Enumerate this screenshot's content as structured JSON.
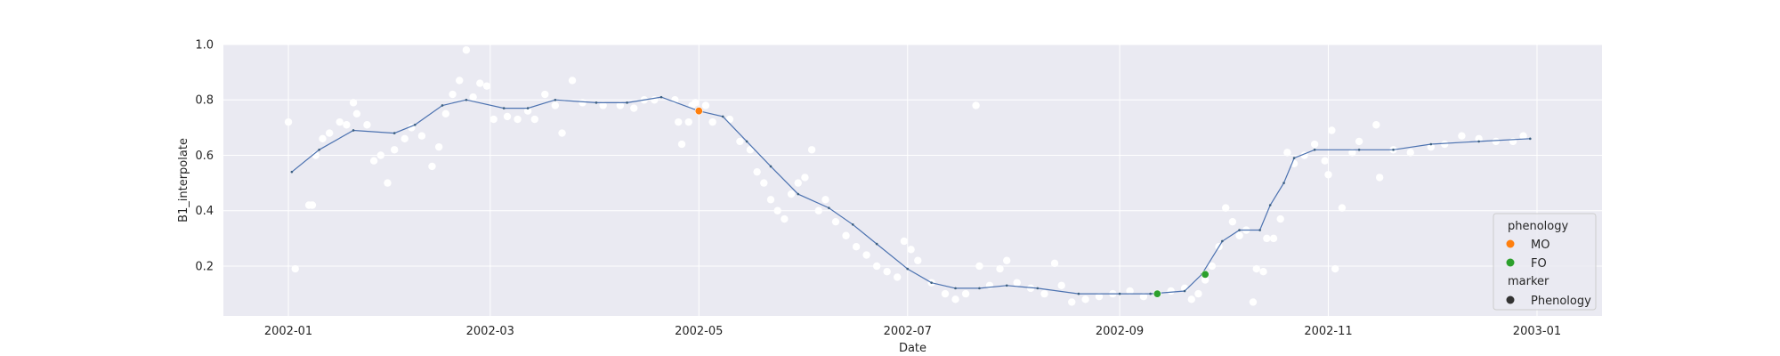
{
  "chart_data": {
    "type": "scatter",
    "xlabel": "Date",
    "ylabel": "B1_interpolate",
    "xlim": [
      "2001-12-13",
      "2003-01-20"
    ],
    "ylim": [
      0.02,
      1.0
    ],
    "x_ticks": [
      "2002-01",
      "2002-03",
      "2002-05",
      "2002-07",
      "2002-09",
      "2002-11",
      "2003-01"
    ],
    "y_ticks": [
      0.2,
      0.4,
      0.6,
      0.8,
      1.0
    ],
    "y_tick_labels": [
      "0.2",
      "0.4",
      "0.6",
      "0.8",
      "1.0"
    ],
    "grid": true,
    "colors": {
      "background": "#eaeaf2",
      "grid": "#ffffff",
      "interpolated": "#4c72b0",
      "raw_points": "#ffffff",
      "MO": "#ff7f0e",
      "FO": "#2ca02c",
      "marker": "#333333"
    },
    "interpolated_curve": [
      [
        "2002-01-02",
        0.54
      ],
      [
        "2002-01-10",
        0.62
      ],
      [
        "2002-01-20",
        0.69
      ],
      [
        "2002-02-01",
        0.68
      ],
      [
        "2002-02-07",
        0.71
      ],
      [
        "2002-02-15",
        0.78
      ],
      [
        "2002-02-22",
        0.8
      ],
      [
        "2002-03-05",
        0.77
      ],
      [
        "2002-03-12",
        0.77
      ],
      [
        "2002-03-20",
        0.8
      ],
      [
        "2002-04-01",
        0.79
      ],
      [
        "2002-04-10",
        0.79
      ],
      [
        "2002-04-20",
        0.81
      ],
      [
        "2002-05-01",
        0.76
      ],
      [
        "2002-05-08",
        0.74
      ],
      [
        "2002-05-15",
        0.65
      ],
      [
        "2002-05-22",
        0.56
      ],
      [
        "2002-05-30",
        0.46
      ],
      [
        "2002-06-08",
        0.41
      ],
      [
        "2002-06-15",
        0.35
      ],
      [
        "2002-06-22",
        0.28
      ],
      [
        "2002-07-01",
        0.19
      ],
      [
        "2002-07-08",
        0.14
      ],
      [
        "2002-07-15",
        0.12
      ],
      [
        "2002-07-22",
        0.12
      ],
      [
        "2002-07-30",
        0.13
      ],
      [
        "2002-08-08",
        0.12
      ],
      [
        "2002-08-20",
        0.1
      ],
      [
        "2002-09-01",
        0.1
      ],
      [
        "2002-09-10",
        0.1
      ],
      [
        "2002-09-20",
        0.11
      ],
      [
        "2002-09-25",
        0.17
      ],
      [
        "2002-10-01",
        0.29
      ],
      [
        "2002-10-06",
        0.33
      ],
      [
        "2002-10-12",
        0.33
      ],
      [
        "2002-10-15",
        0.42
      ],
      [
        "2002-10-19",
        0.5
      ],
      [
        "2002-10-22",
        0.59
      ],
      [
        "2002-10-28",
        0.62
      ],
      [
        "2002-11-10",
        0.62
      ],
      [
        "2002-11-20",
        0.62
      ],
      [
        "2002-12-01",
        0.64
      ],
      [
        "2002-12-15",
        0.65
      ],
      [
        "2002-12-30",
        0.66
      ]
    ],
    "raw_points": [
      [
        "2002-01-01",
        0.72
      ],
      [
        "2002-01-03",
        0.19
      ],
      [
        "2002-01-07",
        0.42
      ],
      [
        "2002-01-08",
        0.42
      ],
      [
        "2002-01-09",
        0.6
      ],
      [
        "2002-01-11",
        0.66
      ],
      [
        "2002-01-13",
        0.68
      ],
      [
        "2002-01-16",
        0.72
      ],
      [
        "2002-01-18",
        0.71
      ],
      [
        "2002-01-20",
        0.79
      ],
      [
        "2002-01-21",
        0.75
      ],
      [
        "2002-01-24",
        0.71
      ],
      [
        "2002-01-26",
        0.58
      ],
      [
        "2002-01-28",
        0.6
      ],
      [
        "2002-01-30",
        0.5
      ],
      [
        "2002-02-01",
        0.62
      ],
      [
        "2002-02-04",
        0.66
      ],
      [
        "2002-02-06",
        0.7
      ],
      [
        "2002-02-09",
        0.67
      ],
      [
        "2002-02-12",
        0.56
      ],
      [
        "2002-02-14",
        0.63
      ],
      [
        "2002-02-16",
        0.75
      ],
      [
        "2002-02-18",
        0.82
      ],
      [
        "2002-02-20",
        0.87
      ],
      [
        "2002-02-22",
        0.98
      ],
      [
        "2002-02-24",
        0.81
      ],
      [
        "2002-02-26",
        0.86
      ],
      [
        "2002-02-28",
        0.85
      ],
      [
        "2002-03-02",
        0.73
      ],
      [
        "2002-03-06",
        0.74
      ],
      [
        "2002-03-09",
        0.73
      ],
      [
        "2002-03-12",
        0.76
      ],
      [
        "2002-03-14",
        0.73
      ],
      [
        "2002-03-17",
        0.82
      ],
      [
        "2002-03-20",
        0.78
      ],
      [
        "2002-03-22",
        0.68
      ],
      [
        "2002-03-25",
        0.87
      ],
      [
        "2002-03-28",
        0.79
      ],
      [
        "2002-04-03",
        0.78
      ],
      [
        "2002-04-08",
        0.78
      ],
      [
        "2002-04-12",
        0.77
      ],
      [
        "2002-04-15",
        0.8
      ],
      [
        "2002-04-18",
        0.8
      ],
      [
        "2002-04-24",
        0.8
      ],
      [
        "2002-04-25",
        0.72
      ],
      [
        "2002-04-26",
        0.64
      ],
      [
        "2002-04-28",
        0.72
      ],
      [
        "2002-04-29",
        0.78
      ],
      [
        "2002-04-30",
        0.79
      ],
      [
        "2002-05-03",
        0.78
      ],
      [
        "2002-05-05",
        0.72
      ],
      [
        "2002-05-10",
        0.73
      ],
      [
        "2002-05-13",
        0.65
      ],
      [
        "2002-05-16",
        0.62
      ],
      [
        "2002-05-18",
        0.54
      ],
      [
        "2002-05-20",
        0.5
      ],
      [
        "2002-05-22",
        0.44
      ],
      [
        "2002-05-24",
        0.4
      ],
      [
        "2002-05-26",
        0.37
      ],
      [
        "2002-05-28",
        0.46
      ],
      [
        "2002-05-30",
        0.5
      ],
      [
        "2002-06-01",
        0.52
      ],
      [
        "2002-06-03",
        0.62
      ],
      [
        "2002-06-05",
        0.4
      ],
      [
        "2002-06-07",
        0.44
      ],
      [
        "2002-06-10",
        0.36
      ],
      [
        "2002-06-13",
        0.31
      ],
      [
        "2002-06-16",
        0.27
      ],
      [
        "2002-06-19",
        0.24
      ],
      [
        "2002-06-22",
        0.2
      ],
      [
        "2002-06-25",
        0.18
      ],
      [
        "2002-06-28",
        0.16
      ],
      [
        "2002-06-30",
        0.29
      ],
      [
        "2002-07-02",
        0.26
      ],
      [
        "2002-07-04",
        0.22
      ],
      [
        "2002-07-08",
        0.14
      ],
      [
        "2002-07-12",
        0.1
      ],
      [
        "2002-07-15",
        0.08
      ],
      [
        "2002-07-18",
        0.1
      ],
      [
        "2002-07-21",
        0.78
      ],
      [
        "2002-07-22",
        0.2
      ],
      [
        "2002-07-25",
        0.13
      ],
      [
        "2002-07-28",
        0.19
      ],
      [
        "2002-07-30",
        0.22
      ],
      [
        "2002-08-02",
        0.14
      ],
      [
        "2002-08-06",
        0.12
      ],
      [
        "2002-08-10",
        0.1
      ],
      [
        "2002-08-13",
        0.21
      ],
      [
        "2002-08-15",
        0.13
      ],
      [
        "2002-08-18",
        0.07
      ],
      [
        "2002-08-22",
        0.08
      ],
      [
        "2002-08-26",
        0.09
      ],
      [
        "2002-08-30",
        0.1
      ],
      [
        "2002-09-04",
        0.11
      ],
      [
        "2002-09-08",
        0.09
      ],
      [
        "2002-09-12",
        0.1
      ],
      [
        "2002-09-16",
        0.11
      ],
      [
        "2002-09-20",
        0.12
      ],
      [
        "2002-09-22",
        0.08
      ],
      [
        "2002-09-24",
        0.1
      ],
      [
        "2002-09-26",
        0.15
      ],
      [
        "2002-09-28",
        0.2
      ],
      [
        "2002-09-30",
        0.27
      ],
      [
        "2002-10-02",
        0.41
      ],
      [
        "2002-10-04",
        0.36
      ],
      [
        "2002-10-06",
        0.31
      ],
      [
        "2002-10-08",
        0.33
      ],
      [
        "2002-10-10",
        0.07
      ],
      [
        "2002-10-11",
        0.19
      ],
      [
        "2002-10-13",
        0.18
      ],
      [
        "2002-10-14",
        0.3
      ],
      [
        "2002-10-16",
        0.3
      ],
      [
        "2002-10-18",
        0.37
      ],
      [
        "2002-10-20",
        0.61
      ],
      [
        "2002-10-22",
        0.57
      ],
      [
        "2002-10-25",
        0.6
      ],
      [
        "2002-10-28",
        0.64
      ],
      [
        "2002-10-31",
        0.58
      ],
      [
        "2002-11-01",
        0.53
      ],
      [
        "2002-11-02",
        0.69
      ],
      [
        "2002-11-03",
        0.19
      ],
      [
        "2002-11-05",
        0.41
      ],
      [
        "2002-11-08",
        0.61
      ],
      [
        "2002-11-10",
        0.65
      ],
      [
        "2002-11-15",
        0.71
      ],
      [
        "2002-11-16",
        0.52
      ],
      [
        "2002-11-20",
        0.62
      ],
      [
        "2002-11-25",
        0.61
      ],
      [
        "2002-12-01",
        0.63
      ],
      [
        "2002-12-05",
        0.64
      ],
      [
        "2002-12-10",
        0.67
      ],
      [
        "2002-12-15",
        0.66
      ],
      [
        "2002-12-20",
        0.65
      ],
      [
        "2002-12-25",
        0.65
      ],
      [
        "2002-12-28",
        0.67
      ]
    ],
    "phenology_points": [
      {
        "label": "MO",
        "date": "2002-05-01",
        "value": 0.76
      },
      {
        "label": "FO",
        "date": "2002-09-12",
        "value": 0.1
      },
      {
        "label": "FO",
        "date": "2002-09-26",
        "value": 0.17
      }
    ],
    "legend": {
      "placement": "bottom-right",
      "title_phenology": "phenology",
      "entries": [
        "MO",
        "FO"
      ],
      "title_marker": "marker",
      "marker_label": "Phenology"
    }
  }
}
